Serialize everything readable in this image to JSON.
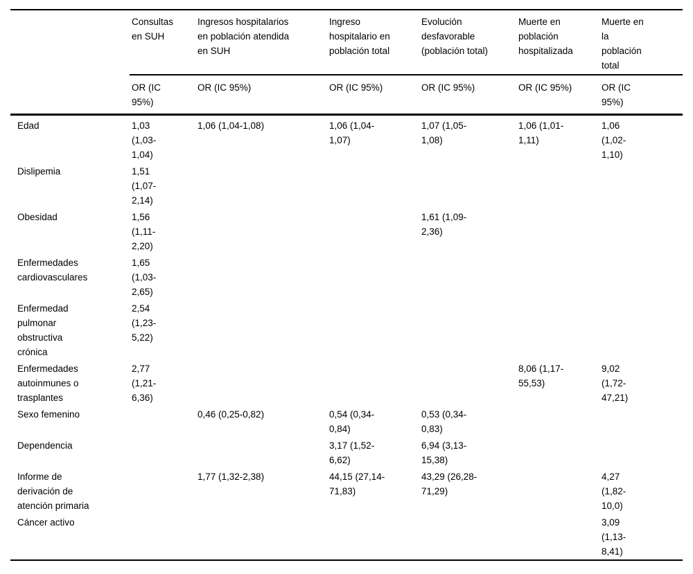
{
  "table": {
    "kind": "odds-ratio-table",
    "columns": [
      {
        "header": "Consultas\nen SUH",
        "subheader": "OR (IC\n95%)"
      },
      {
        "header": "Ingresos hospitalarios\nen población atendida\nen SUH",
        "subheader": "OR (IC 95%)"
      },
      {
        "header": "Ingreso\nhospitalario en\npoblación total",
        "subheader": "OR (IC 95%)"
      },
      {
        "header": "Evolución\ndesfavorable\n(población total)",
        "subheader": "OR (IC 95%)"
      },
      {
        "header": "Muerte en\npoblación\nhospitalizada",
        "subheader": "OR (IC 95%)"
      },
      {
        "header": "Muerte en\nla\npoblación\ntotal",
        "subheader": "OR (IC\n95%)"
      }
    ],
    "rows": [
      {
        "label": "Edad",
        "values": [
          "1,03\n(1,03-\n1,04)",
          "1,06 (1,04-1,08)",
          "1,06 (1,04-\n1,07)",
          "1,07 (1,05-\n1,08)",
          "1,06 (1,01-\n1,11)",
          "1,06\n(1,02-\n1,10)"
        ]
      },
      {
        "label": "Dislipemia",
        "values": [
          "1,51\n(1,07-\n2,14)",
          "",
          "",
          "",
          "",
          ""
        ]
      },
      {
        "label": "Obesidad",
        "values": [
          "1,56\n(1,11-\n2,20)",
          "",
          "",
          "1,61 (1,09-\n2,36)",
          "",
          ""
        ]
      },
      {
        "label": "Enfermedades\ncardiovasculares",
        "values": [
          "1,65\n(1,03-\n2,65)",
          "",
          "",
          "",
          "",
          ""
        ]
      },
      {
        "label": "Enfermedad\npulmonar\nobstructiva\ncrónica",
        "values": [
          "2,54\n(1,23-\n5,22)",
          "",
          "",
          "",
          "",
          ""
        ]
      },
      {
        "label": "Enfermedades\nautoinmunes o\ntrasplantes",
        "values": [
          "2,77\n(1,21-\n6,36)",
          "",
          "",
          "",
          "8,06 (1,17-\n55,53)",
          "9,02\n(1,72-\n47,21)"
        ]
      },
      {
        "label": "Sexo femenino",
        "values": [
          "",
          "0,46 (0,25-0,82)",
          "0,54 (0,34-\n0,84)",
          "0,53 (0,34-\n0,83)",
          "",
          ""
        ]
      },
      {
        "label": "Dependencia",
        "values": [
          "",
          "",
          "3,17 (1,52-\n6,62)",
          "6,94 (3,13-\n15,38)",
          "",
          ""
        ]
      },
      {
        "label": "Informe de\nderivación de\natención primaria",
        "values": [
          "",
          "1,77 (1,32-2,38)",
          "44,15 (27,14-\n71,83)",
          "43,29 (26,28-\n71,29)",
          "",
          "4,27\n(1,82-\n10,0)"
        ]
      },
      {
        "label": "Cáncer activo",
        "values": [
          "",
          "",
          "",
          "",
          "",
          "3,09\n(1,13-\n8,41)"
        ]
      }
    ]
  }
}
